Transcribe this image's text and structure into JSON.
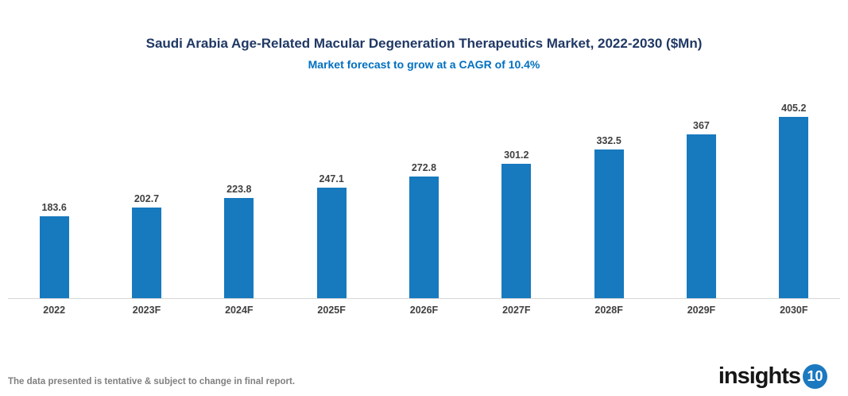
{
  "header": {
    "title": "Saudi Arabia Age-Related Macular Degeneration Therapeutics Market, 2022-2030 ($Mn)",
    "subtitle": "Market forecast to grow at a CAGR of 10.4%"
  },
  "chart_data": {
    "type": "bar",
    "title": "Saudi Arabia Age-Related Macular Degeneration Therapeutics Market, 2022-2030 ($Mn)",
    "subtitle": "Market forecast to grow at a CAGR of 10.4%",
    "categories": [
      "2022",
      "2023F",
      "2024F",
      "2025F",
      "2026F",
      "2027F",
      "2028F",
      "2029F",
      "2030F"
    ],
    "values": [
      183.6,
      202.7,
      223.8,
      247.1,
      272.8,
      301.2,
      332.5,
      367,
      405.2
    ],
    "value_labels": [
      "183.6",
      "202.7",
      "223.8",
      "247.1",
      "272.8",
      "301.2",
      "332.5",
      "367",
      "405.2"
    ],
    "xlabel": "",
    "ylabel": "",
    "ylim": [
      0,
      430
    ],
    "grid": false,
    "legend": false,
    "bar_color": "#1779BE",
    "axis_line_color": "#d6d6d6"
  },
  "footer": {
    "disclaimer": "The data presented is tentative & subject to change in final report.",
    "logo_text": "insights",
    "logo_badge": "10"
  }
}
